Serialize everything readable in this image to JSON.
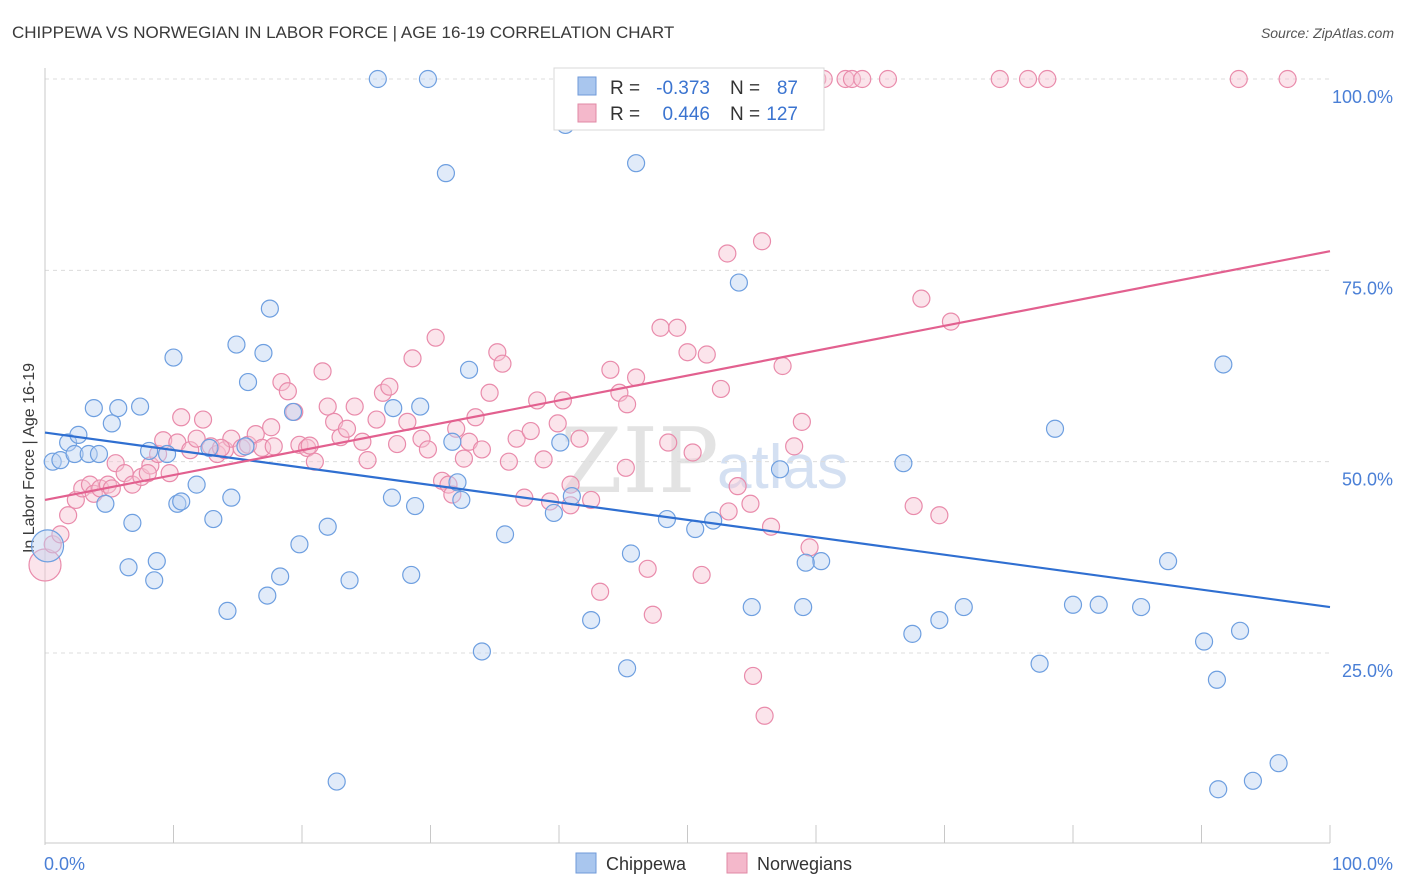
{
  "header": {
    "title": "CHIPPEWA VS NORWEGIAN IN LABOR FORCE | AGE 16-19 CORRELATION CHART",
    "source": "Source: ZipAtlas.com"
  },
  "watermark": {
    "zip": "ZIP",
    "atlas": "atlas"
  },
  "legend": {
    "rows": [
      {
        "r_label": "R =",
        "r_value": "-0.373",
        "n_label": "N =",
        "n_value": "87",
        "color": "#a9c6ee"
      },
      {
        "r_label": "R =",
        "r_value": "0.446",
        "n_label": "N =",
        "n_value": "127",
        "color": "#f4b8cb"
      }
    ]
  },
  "bottom_legend": {
    "items": [
      {
        "label": "Chippewa",
        "color": "#a9c6ee"
      },
      {
        "label": "Norwegians",
        "color": "#f4b8cb"
      }
    ]
  },
  "chart_data": {
    "type": "scatter",
    "title": "CHIPPEWA VS NORWEGIAN IN LABOR FORCE | AGE 16-19 CORRELATION CHART",
    "xlabel": "",
    "ylabel": "In Labor Force | Age 16-19",
    "xlim": [
      0,
      100
    ],
    "ylim": [
      0,
      105
    ],
    "x_tick_labels": [
      "0.0%",
      "100.0%"
    ],
    "y_ticks": [
      25,
      50,
      75,
      100
    ],
    "y_tick_labels": [
      "25.0%",
      "50.0%",
      "75.0%",
      "100.0%"
    ],
    "grid": true,
    "legend_position": "top-center",
    "series": [
      {
        "name": "Chippewa",
        "color": "#8fb4e8",
        "line_color": "#2f6fd1",
        "trend": [
          [
            0,
            53.8
          ],
          [
            100,
            31.0
          ]
        ],
        "points": [
          [
            0.2,
            39
          ],
          [
            0.6,
            50
          ],
          [
            1.2,
            50.2
          ],
          [
            1.8,
            52.5
          ],
          [
            2.3,
            51
          ],
          [
            2.6,
            53.5
          ],
          [
            3.4,
            51
          ],
          [
            3.8,
            57
          ],
          [
            4.2,
            51
          ],
          [
            4.7,
            44.5
          ],
          [
            5.2,
            55
          ],
          [
            5.7,
            57
          ],
          [
            6.5,
            36.2
          ],
          [
            6.8,
            42
          ],
          [
            7.4,
            57.2
          ],
          [
            8.1,
            51.4
          ],
          [
            8.5,
            34.5
          ],
          [
            8.7,
            37
          ],
          [
            9.5,
            51
          ],
          [
            10.0,
            63.6
          ],
          [
            10.3,
            44.5
          ],
          [
            10.6,
            44.8
          ],
          [
            11.8,
            47
          ],
          [
            12.8,
            51.8
          ],
          [
            13.1,
            42.5
          ],
          [
            14.2,
            30.5
          ],
          [
            14.5,
            45.3
          ],
          [
            14.9,
            65.3
          ],
          [
            15.8,
            60.4
          ],
          [
            15.6,
            52
          ],
          [
            17.0,
            64.2
          ],
          [
            17.3,
            32.5
          ],
          [
            18.3,
            35
          ],
          [
            19.3,
            56.5
          ],
          [
            19.8,
            39.2
          ],
          [
            22.0,
            41.5
          ],
          [
            22.7,
            8.2
          ],
          [
            23.7,
            34.5
          ],
          [
            25.9,
            100
          ],
          [
            27.0,
            45.3
          ],
          [
            28.5,
            35.2
          ],
          [
            28.8,
            44.2
          ],
          [
            29.2,
            57.2
          ],
          [
            29.8,
            100
          ],
          [
            31.2,
            87.7
          ],
          [
            31.7,
            52.6
          ],
          [
            32.1,
            47.3
          ],
          [
            32.4,
            45
          ],
          [
            33.0,
            62
          ],
          [
            34.0,
            25.2
          ],
          [
            35.8,
            40.5
          ],
          [
            39.6,
            43.3
          ],
          [
            40.1,
            52.5
          ],
          [
            40.5,
            94
          ],
          [
            41.0,
            45.5
          ],
          [
            42.5,
            29.3
          ],
          [
            45.3,
            23
          ],
          [
            45.6,
            38
          ],
          [
            46.0,
            89
          ],
          [
            48.4,
            42.5
          ],
          [
            50.6,
            41.2
          ],
          [
            52.0,
            42.3
          ],
          [
            54.0,
            73.4
          ],
          [
            55.0,
            31
          ],
          [
            57.2,
            49
          ],
          [
            59.0,
            31
          ],
          [
            60.4,
            37
          ],
          [
            66.8,
            49.8
          ],
          [
            67.5,
            27.5
          ],
          [
            69.6,
            29.3
          ],
          [
            71.5,
            31
          ],
          [
            77.4,
            23.6
          ],
          [
            78.6,
            54.3
          ],
          [
            80.0,
            31.3
          ],
          [
            85.3,
            31
          ],
          [
            87.4,
            37
          ],
          [
            90.2,
            26.5
          ],
          [
            91.7,
            62.7
          ],
          [
            91.2,
            21.5
          ],
          [
            91.3,
            7.2
          ],
          [
            93.0,
            27.9
          ],
          [
            94.0,
            8.3
          ],
          [
            96.0,
            10.6
          ],
          [
            17.5,
            70
          ],
          [
            82.0,
            31.3
          ],
          [
            27.1,
            57
          ],
          [
            59.2,
            36.8
          ]
        ]
      },
      {
        "name": "Norwegians",
        "color": "#f4a9c1",
        "line_color": "#e2608f",
        "trend": [
          [
            0,
            45.0
          ],
          [
            100,
            77.5
          ]
        ],
        "points": [
          [
            0.0,
            36.5
          ],
          [
            0.6,
            39.2
          ],
          [
            1.2,
            40.5
          ],
          [
            1.8,
            43
          ],
          [
            2.4,
            45
          ],
          [
            2.9,
            46.5
          ],
          [
            3.5,
            47
          ],
          [
            3.8,
            45.8
          ],
          [
            4.3,
            46.5
          ],
          [
            4.9,
            47
          ],
          [
            5.5,
            49.8
          ],
          [
            6.2,
            48.5
          ],
          [
            6.8,
            47
          ],
          [
            7.5,
            48
          ],
          [
            8.2,
            49.5
          ],
          [
            8.8,
            51
          ],
          [
            9.2,
            52.8
          ],
          [
            9.7,
            48.5
          ],
          [
            10.3,
            52.5
          ],
          [
            10.6,
            55.8
          ],
          [
            11.3,
            51.5
          ],
          [
            11.8,
            53
          ],
          [
            12.3,
            55.5
          ],
          [
            12.9,
            52
          ],
          [
            13.4,
            51
          ],
          [
            14.0,
            51.5
          ],
          [
            14.5,
            53
          ],
          [
            15.3,
            51.8
          ],
          [
            15.8,
            52.2
          ],
          [
            16.4,
            53.6
          ],
          [
            16.9,
            51.8
          ],
          [
            17.6,
            54.5
          ],
          [
            17.8,
            52
          ],
          [
            18.4,
            60.4
          ],
          [
            18.9,
            59.2
          ],
          [
            19.4,
            56.5
          ],
          [
            19.8,
            52.2
          ],
          [
            20.4,
            51.8
          ],
          [
            21.0,
            50
          ],
          [
            21.6,
            61.8
          ],
          [
            22.0,
            57.2
          ],
          [
            22.5,
            55.2
          ],
          [
            23.0,
            53.2
          ],
          [
            23.5,
            54.3
          ],
          [
            24.1,
            57.2
          ],
          [
            24.7,
            52.6
          ],
          [
            25.1,
            50.2
          ],
          [
            25.8,
            55.5
          ],
          [
            26.3,
            59
          ],
          [
            26.8,
            59.8
          ],
          [
            27.4,
            52.3
          ],
          [
            28.2,
            55.2
          ],
          [
            28.6,
            63.5
          ],
          [
            29.3,
            53
          ],
          [
            29.8,
            51.6
          ],
          [
            30.4,
            66.2
          ],
          [
            30.9,
            47.5
          ],
          [
            31.4,
            47
          ],
          [
            32.0,
            54.3
          ],
          [
            32.6,
            50.4
          ],
          [
            33.0,
            52.6
          ],
          [
            33.5,
            55.8
          ],
          [
            34.0,
            51.6
          ],
          [
            34.6,
            59
          ],
          [
            35.2,
            64.3
          ],
          [
            35.6,
            62.8
          ],
          [
            36.1,
            50
          ],
          [
            36.7,
            53
          ],
          [
            37.3,
            45.3
          ],
          [
            37.8,
            54
          ],
          [
            38.3,
            58
          ],
          [
            38.8,
            50.3
          ],
          [
            39.3,
            44.8
          ],
          [
            39.9,
            55
          ],
          [
            40.3,
            58
          ],
          [
            40.9,
            47
          ],
          [
            41.6,
            53
          ],
          [
            42.5,
            45
          ],
          [
            43.2,
            33
          ],
          [
            44.0,
            62
          ],
          [
            44.7,
            59
          ],
          [
            45.3,
            57.5
          ],
          [
            46.0,
            61
          ],
          [
            46.9,
            36
          ],
          [
            47.3,
            30
          ],
          [
            47.9,
            67.5
          ],
          [
            48.5,
            52.5
          ],
          [
            49.2,
            67.5
          ],
          [
            50.0,
            64.3
          ],
          [
            50.4,
            51.2
          ],
          [
            51.1,
            35.2
          ],
          [
            51.5,
            64
          ],
          [
            52.6,
            59.5
          ],
          [
            53.2,
            43.5
          ],
          [
            53.9,
            46.8
          ],
          [
            54.9,
            44.5
          ],
          [
            55.1,
            22
          ],
          [
            56.0,
            16.8
          ],
          [
            56.5,
            41.5
          ],
          [
            57.4,
            62.5
          ],
          [
            58.3,
            52
          ],
          [
            59.5,
            38.8
          ],
          [
            60.1,
            100
          ],
          [
            60.6,
            100
          ],
          [
            62.3,
            100
          ],
          [
            62.8,
            100
          ],
          [
            63.6,
            100
          ],
          [
            65.6,
            100
          ],
          [
            67.6,
            44.2
          ],
          [
            68.2,
            71.3
          ],
          [
            69.6,
            43
          ],
          [
            70.5,
            68.3
          ],
          [
            74.3,
            100
          ],
          [
            76.5,
            100
          ],
          [
            78.0,
            100
          ],
          [
            92.9,
            100
          ],
          [
            96.7,
            100
          ],
          [
            55.8,
            78.8
          ],
          [
            53.1,
            77.2
          ],
          [
            45.2,
            49.2
          ],
          [
            31.7,
            45.7
          ],
          [
            40.9,
            44.3
          ],
          [
            13.7,
            51.8
          ],
          [
            8.0,
            48.5
          ],
          [
            5.2,
            46.5
          ],
          [
            20.6,
            52.1
          ],
          [
            58.9,
            55.2
          ]
        ]
      }
    ]
  }
}
